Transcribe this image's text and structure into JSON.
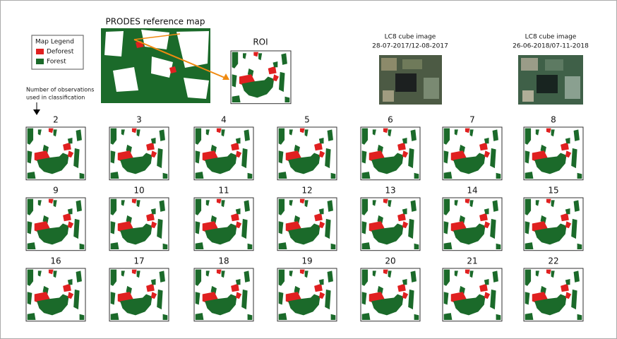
{
  "reference": {
    "title": "PRODES reference map"
  },
  "legend": {
    "title": "Map Legend",
    "items": [
      "Deforest",
      "Forest"
    ]
  },
  "roi": {
    "title": "ROI"
  },
  "images": [
    {
      "title": "LC8 cube image",
      "dates": "28-07-2017/12-08-2017"
    },
    {
      "title": "LC8 cube image",
      "dates": "26-06-2018/07-11-2018"
    }
  ],
  "note": [
    "Number of observations",
    "used in classification"
  ],
  "grid": {
    "labels": [
      "2",
      "3",
      "4",
      "5",
      "6",
      "7",
      "8",
      "9",
      "10",
      "11",
      "12",
      "13",
      "14",
      "15",
      "16",
      "17",
      "18",
      "19",
      "20",
      "21",
      "22"
    ]
  }
}
